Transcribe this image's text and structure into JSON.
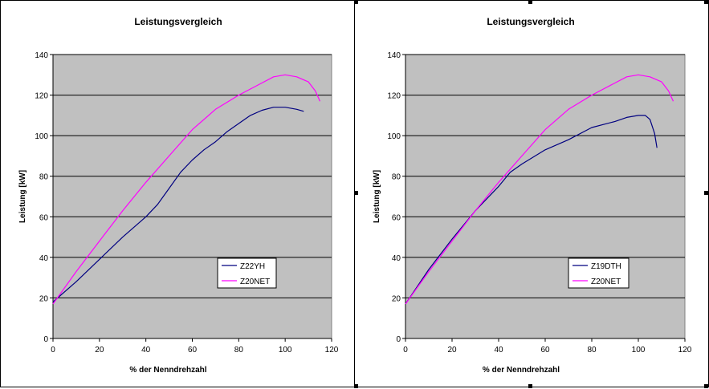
{
  "colors": {
    "plot_bg": "#c0c0c0",
    "series1": "#000080",
    "series2": "#ff00ff",
    "grid": "#000000"
  },
  "chart_data": [
    {
      "type": "line",
      "title": "Leistungsvergleich",
      "xlabel": "% der Nenndrehzahl",
      "ylabel": "Leistung [kW]",
      "xlim": [
        0,
        120
      ],
      "ylim": [
        0,
        140
      ],
      "xticks": [
        0,
        20,
        40,
        60,
        80,
        100,
        120
      ],
      "yticks": [
        0,
        20,
        40,
        60,
        80,
        100,
        120,
        140
      ],
      "grid": "horizontal",
      "legend": "bottom-right",
      "series": [
        {
          "name": "Z22YH",
          "points": [
            [
              0,
              18
            ],
            [
              10,
              28
            ],
            [
              20,
              39
            ],
            [
              30,
              50
            ],
            [
              40,
              60
            ],
            [
              45,
              66
            ],
            [
              50,
              74
            ],
            [
              55,
              82
            ],
            [
              60,
              88
            ],
            [
              65,
              93
            ],
            [
              70,
              97
            ],
            [
              75,
              102
            ],
            [
              80,
              106
            ],
            [
              85,
              110
            ],
            [
              90,
              112.5
            ],
            [
              95,
              114
            ],
            [
              100,
              114
            ],
            [
              105,
              113
            ],
            [
              108,
              112
            ]
          ]
        },
        {
          "name": "Z20NET",
          "points": [
            [
              0,
              17
            ],
            [
              10,
              33
            ],
            [
              20,
              48
            ],
            [
              30,
              63
            ],
            [
              40,
              77
            ],
            [
              50,
              90
            ],
            [
              60,
              103
            ],
            [
              70,
              113
            ],
            [
              80,
              120
            ],
            [
              90,
              126
            ],
            [
              95,
              129
            ],
            [
              100,
              130
            ],
            [
              105,
              129
            ],
            [
              110,
              126.5
            ],
            [
              113,
              122
            ],
            [
              115,
              117
            ]
          ]
        }
      ]
    },
    {
      "type": "line",
      "title": "Leistungsvergleich",
      "xlabel": "% der Nenndrehzahl",
      "ylabel": "Leistung [kW]",
      "xlim": [
        0,
        120
      ],
      "ylim": [
        0,
        140
      ],
      "xticks": [
        0,
        20,
        40,
        60,
        80,
        100,
        120
      ],
      "yticks": [
        0,
        20,
        40,
        60,
        80,
        100,
        120,
        140
      ],
      "grid": "horizontal",
      "legend": "bottom-right",
      "series": [
        {
          "name": "Z19DTH",
          "points": [
            [
              0,
              17
            ],
            [
              10,
              34
            ],
            [
              20,
              49
            ],
            [
              30,
              63
            ],
            [
              40,
              75
            ],
            [
              45,
              82
            ],
            [
              50,
              86
            ],
            [
              60,
              93
            ],
            [
              70,
              98
            ],
            [
              80,
              104
            ],
            [
              90,
              107
            ],
            [
              95,
              109
            ],
            [
              100,
              110
            ],
            [
              103,
              110
            ],
            [
              105,
              108
            ],
            [
              107,
              101
            ],
            [
              108,
              94
            ]
          ]
        },
        {
          "name": "Z20NET",
          "points": [
            [
              0,
              17
            ],
            [
              10,
              33
            ],
            [
              20,
              48
            ],
            [
              30,
              63
            ],
            [
              40,
              77
            ],
            [
              50,
              90
            ],
            [
              60,
              103
            ],
            [
              70,
              113
            ],
            [
              80,
              120
            ],
            [
              90,
              126
            ],
            [
              95,
              129
            ],
            [
              100,
              130
            ],
            [
              105,
              129
            ],
            [
              110,
              126.5
            ],
            [
              113,
              122
            ],
            [
              115,
              117
            ]
          ]
        }
      ]
    }
  ]
}
